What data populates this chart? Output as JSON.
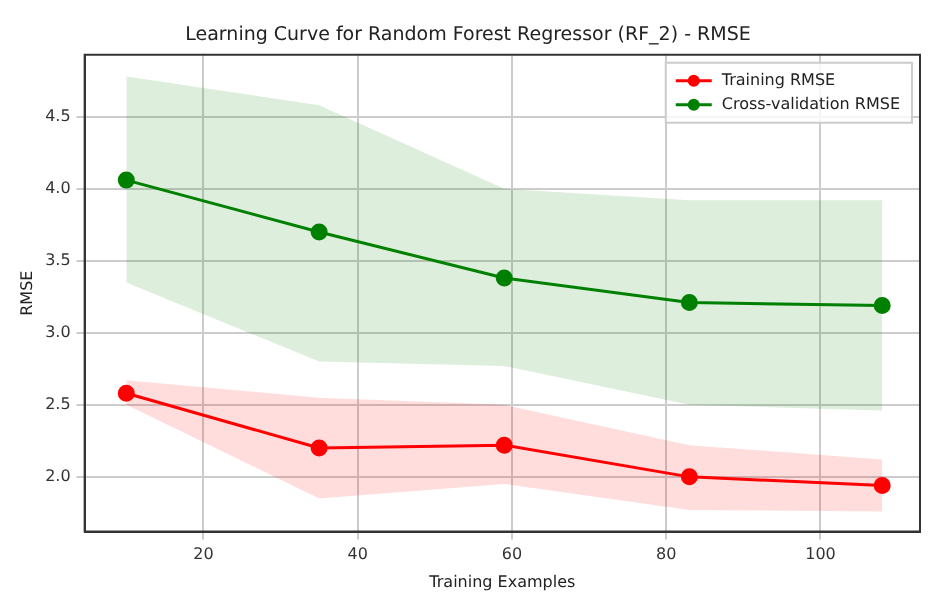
{
  "chart_data": {
    "type": "line",
    "title": "Learning Curve for Random Forest Regressor (RF_2) - RMSE",
    "xlabel": "Training Examples",
    "ylabel": "RMSE",
    "x": [
      10,
      35,
      59,
      83,
      108
    ],
    "series": [
      {
        "name": "Training RMSE",
        "color": "#ff0000",
        "values": [
          2.58,
          2.2,
          2.22,
          2.0,
          1.94
        ],
        "lower": [
          2.5,
          1.85,
          1.95,
          1.77,
          1.76
        ],
        "upper": [
          2.67,
          2.55,
          2.5,
          2.22,
          2.12
        ]
      },
      {
        "name": "Cross-validation RMSE",
        "color": "#008000",
        "values": [
          4.06,
          3.7,
          3.38,
          3.21,
          3.19
        ],
        "lower": [
          3.35,
          2.8,
          2.77,
          2.5,
          2.46
        ],
        "upper": [
          4.78,
          4.58,
          4.0,
          3.92,
          3.92
        ]
      }
    ],
    "xlim": [
      4.6,
      112.9
    ],
    "ylim": [
      1.62,
      4.93
    ],
    "xticks": [
      20,
      40,
      60,
      80,
      100
    ],
    "yticks": [
      {
        "value": 2,
        "label": "2.0"
      },
      {
        "value": 2.5,
        "label": "2.5"
      },
      {
        "value": 3,
        "label": "3.0"
      },
      {
        "value": 3.5,
        "label": "3.5"
      },
      {
        "value": 4,
        "label": "4.0"
      },
      {
        "value": 4.5,
        "label": "4.5"
      }
    ],
    "grid": true,
    "legend": "top right",
    "marker": "circle",
    "line_style": "solid"
  }
}
